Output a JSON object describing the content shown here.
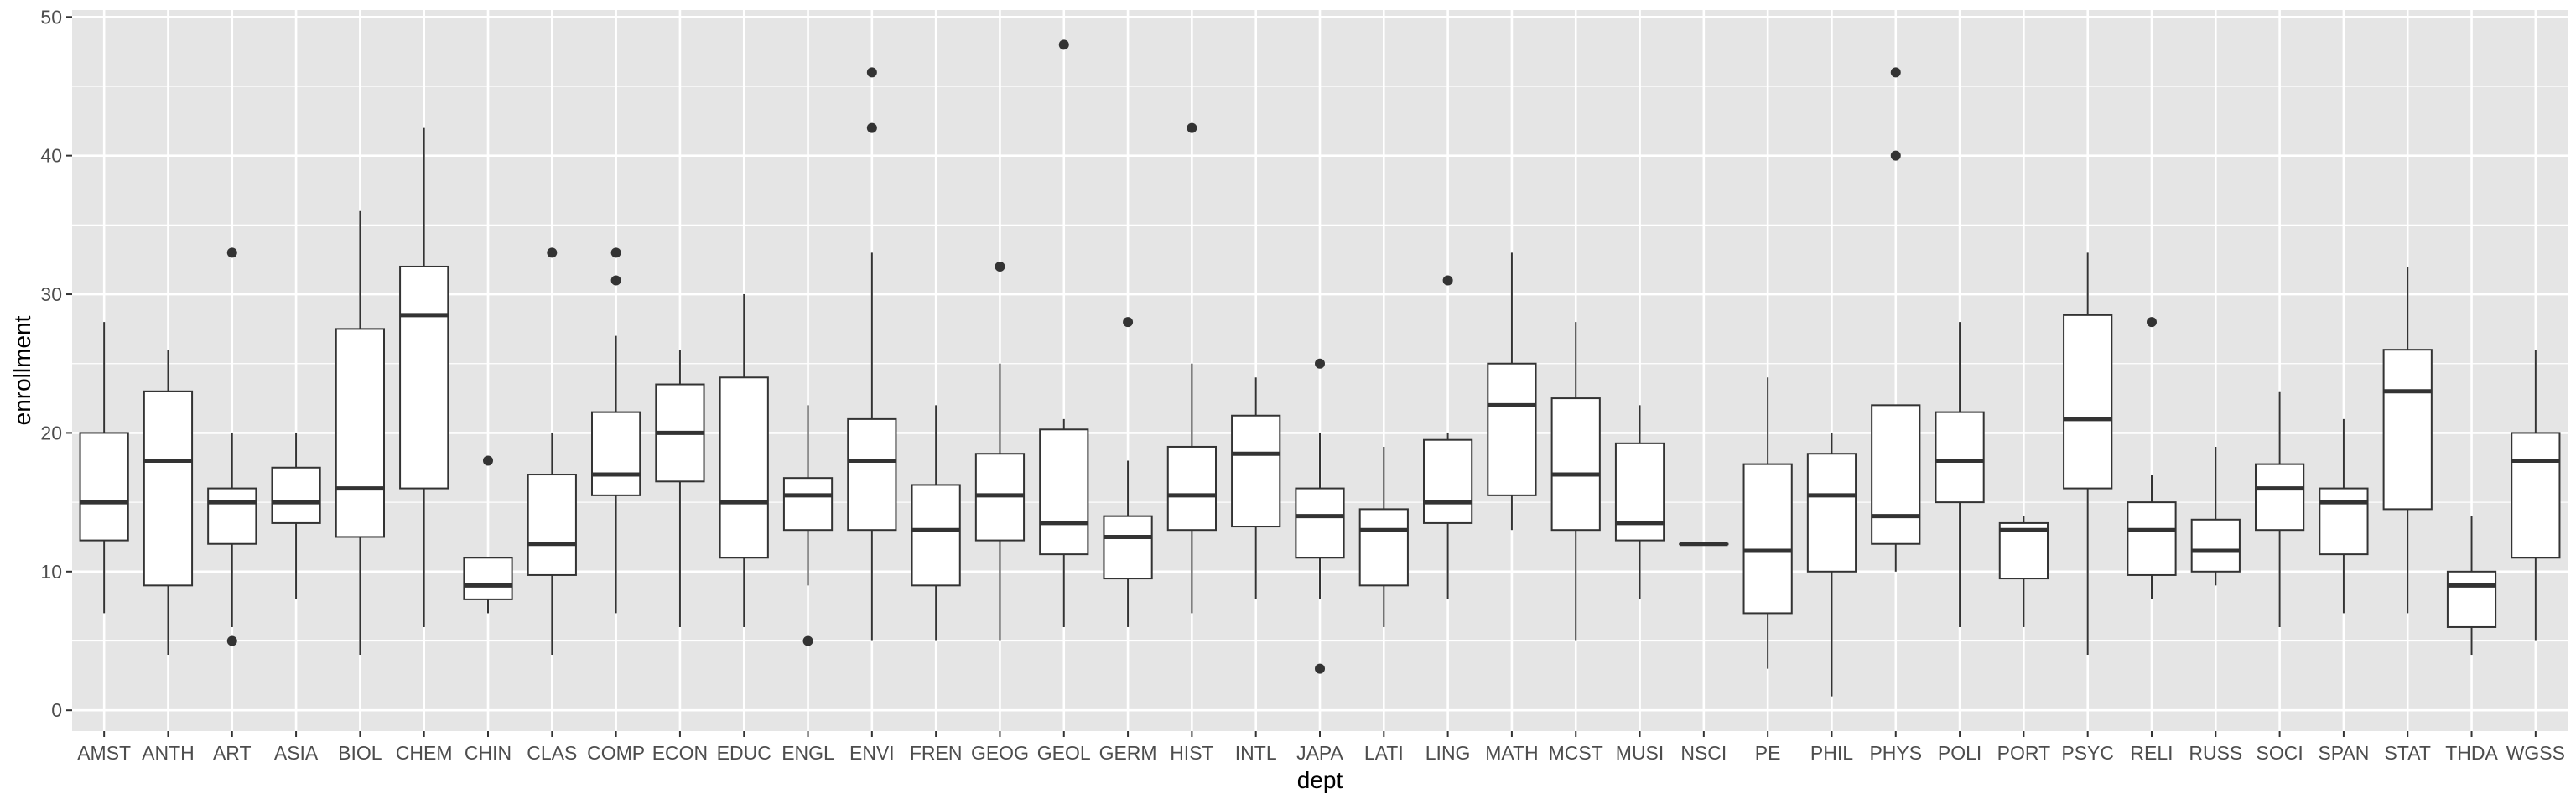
{
  "chart_data": {
    "type": "boxplot",
    "xlabel": "dept",
    "ylabel": "enrollment",
    "ylim": [
      -1.5,
      50.5
    ],
    "yticks": [
      0,
      10,
      20,
      30,
      40,
      50
    ],
    "grid": true,
    "colors": {
      "panel_bg": "#e5e5e5",
      "gridline": "#ffffff",
      "box_fill": "#ffffff",
      "box_stroke": "#333333",
      "outlier": "#333333"
    },
    "series": [
      {
        "category": "AMST",
        "min": 7,
        "q1": 12.25,
        "median": 15,
        "q3": 20,
        "max": 28,
        "outliers": []
      },
      {
        "category": "ANTH",
        "min": 4,
        "q1": 9,
        "median": 18,
        "q3": 23,
        "max": 26,
        "outliers": []
      },
      {
        "category": "ART",
        "min": 6,
        "q1": 12,
        "median": 15,
        "q3": 16,
        "max": 20,
        "outliers": [
          33,
          5
        ]
      },
      {
        "category": "ASIA",
        "min": 8,
        "q1": 13.5,
        "median": 15,
        "q3": 17.5,
        "max": 20,
        "outliers": []
      },
      {
        "category": "BIOL",
        "min": 4,
        "q1": 12.5,
        "median": 16,
        "q3": 27.5,
        "max": 36,
        "outliers": []
      },
      {
        "category": "CHEM",
        "min": 6,
        "q1": 16,
        "median": 28.5,
        "q3": 32,
        "max": 42,
        "outliers": []
      },
      {
        "category": "CHIN",
        "min": 7,
        "q1": 8,
        "median": 9,
        "q3": 11,
        "max": 11,
        "outliers": [
          18
        ]
      },
      {
        "category": "CLAS",
        "min": 4,
        "q1": 9.75,
        "median": 12,
        "q3": 17,
        "max": 20,
        "outliers": [
          33
        ]
      },
      {
        "category": "COMP",
        "min": 7,
        "q1": 15.5,
        "median": 17,
        "q3": 21.5,
        "max": 27,
        "outliers": [
          33,
          31
        ]
      },
      {
        "category": "ECON",
        "min": 6,
        "q1": 16.5,
        "median": 20,
        "q3": 23.5,
        "max": 26,
        "outliers": []
      },
      {
        "category": "EDUC",
        "min": 6,
        "q1": 11,
        "median": 15,
        "q3": 24,
        "max": 30,
        "outliers": []
      },
      {
        "category": "ENGL",
        "min": 9,
        "q1": 13,
        "median": 15.5,
        "q3": 16.75,
        "max": 22,
        "outliers": [
          5
        ]
      },
      {
        "category": "ENVI",
        "min": 5,
        "q1": 13,
        "median": 18,
        "q3": 21,
        "max": 33,
        "outliers": [
          46,
          42
        ]
      },
      {
        "category": "FREN",
        "min": 5,
        "q1": 9,
        "median": 13,
        "q3": 16.25,
        "max": 22,
        "outliers": []
      },
      {
        "category": "GEOG",
        "min": 5,
        "q1": 12.25,
        "median": 15.5,
        "q3": 18.5,
        "max": 25,
        "outliers": [
          32
        ]
      },
      {
        "category": "GEOL",
        "min": 6,
        "q1": 11.25,
        "median": 13.5,
        "q3": 20.25,
        "max": 21,
        "outliers": [
          48
        ]
      },
      {
        "category": "GERM",
        "min": 6,
        "q1": 9.5,
        "median": 12.5,
        "q3": 14,
        "max": 18,
        "outliers": [
          28
        ]
      },
      {
        "category": "HIST",
        "min": 7,
        "q1": 13,
        "median": 15.5,
        "q3": 19,
        "max": 25,
        "outliers": [
          42
        ]
      },
      {
        "category": "INTL",
        "min": 8,
        "q1": 13.25,
        "median": 18.5,
        "q3": 21.25,
        "max": 24,
        "outliers": []
      },
      {
        "category": "JAPA",
        "min": 8,
        "q1": 11,
        "median": 14,
        "q3": 16,
        "max": 20,
        "outliers": [
          25,
          3
        ]
      },
      {
        "category": "LATI",
        "min": 6,
        "q1": 9,
        "median": 13,
        "q3": 14.5,
        "max": 19,
        "outliers": []
      },
      {
        "category": "LING",
        "min": 8,
        "q1": 13.5,
        "median": 15,
        "q3": 19.5,
        "max": 20,
        "outliers": [
          31
        ]
      },
      {
        "category": "MATH",
        "min": 13,
        "q1": 15.5,
        "median": 22,
        "q3": 25,
        "max": 33,
        "outliers": []
      },
      {
        "category": "MCST",
        "min": 5,
        "q1": 13,
        "median": 17,
        "q3": 22.5,
        "max": 28,
        "outliers": []
      },
      {
        "category": "MUSI",
        "min": 8,
        "q1": 12.25,
        "median": 13.5,
        "q3": 19.25,
        "max": 22,
        "outliers": []
      },
      {
        "category": "NSCI",
        "min": 12,
        "q1": 12,
        "median": 12,
        "q3": 12,
        "max": 12,
        "outliers": []
      },
      {
        "category": "PE",
        "min": 3,
        "q1": 7,
        "median": 11.5,
        "q3": 17.75,
        "max": 24,
        "outliers": []
      },
      {
        "category": "PHIL",
        "min": 1,
        "q1": 10,
        "median": 15.5,
        "q3": 18.5,
        "max": 20,
        "outliers": []
      },
      {
        "category": "PHYS",
        "min": 10,
        "q1": 12,
        "median": 14,
        "q3": 22,
        "max": 22,
        "outliers": [
          46,
          40
        ]
      },
      {
        "category": "POLI",
        "min": 6,
        "q1": 15,
        "median": 18,
        "q3": 21.5,
        "max": 28,
        "outliers": []
      },
      {
        "category": "PORT",
        "min": 6,
        "q1": 9.5,
        "median": 13,
        "q3": 13.5,
        "max": 14,
        "outliers": []
      },
      {
        "category": "PSYC",
        "min": 4,
        "q1": 16,
        "median": 21,
        "q3": 28.5,
        "max": 33,
        "outliers": []
      },
      {
        "category": "RELI",
        "min": 8,
        "q1": 9.75,
        "median": 13,
        "q3": 15,
        "max": 17,
        "outliers": [
          28
        ]
      },
      {
        "category": "RUSS",
        "min": 9,
        "q1": 10,
        "median": 11.5,
        "q3": 13.75,
        "max": 19,
        "outliers": []
      },
      {
        "category": "SOCI",
        "min": 6,
        "q1": 13,
        "median": 16,
        "q3": 17.75,
        "max": 23,
        "outliers": []
      },
      {
        "category": "SPAN",
        "min": 7,
        "q1": 11.25,
        "median": 15,
        "q3": 16,
        "max": 21,
        "outliers": []
      },
      {
        "category": "STAT",
        "min": 7,
        "q1": 14.5,
        "median": 23,
        "q3": 26,
        "max": 32,
        "outliers": []
      },
      {
        "category": "THDA",
        "min": 4,
        "q1": 6,
        "median": 9,
        "q3": 10,
        "max": 14,
        "outliers": []
      },
      {
        "category": "WGSS",
        "min": 5,
        "q1": 11,
        "median": 18,
        "q3": 20,
        "max": 26,
        "outliers": []
      }
    ]
  }
}
